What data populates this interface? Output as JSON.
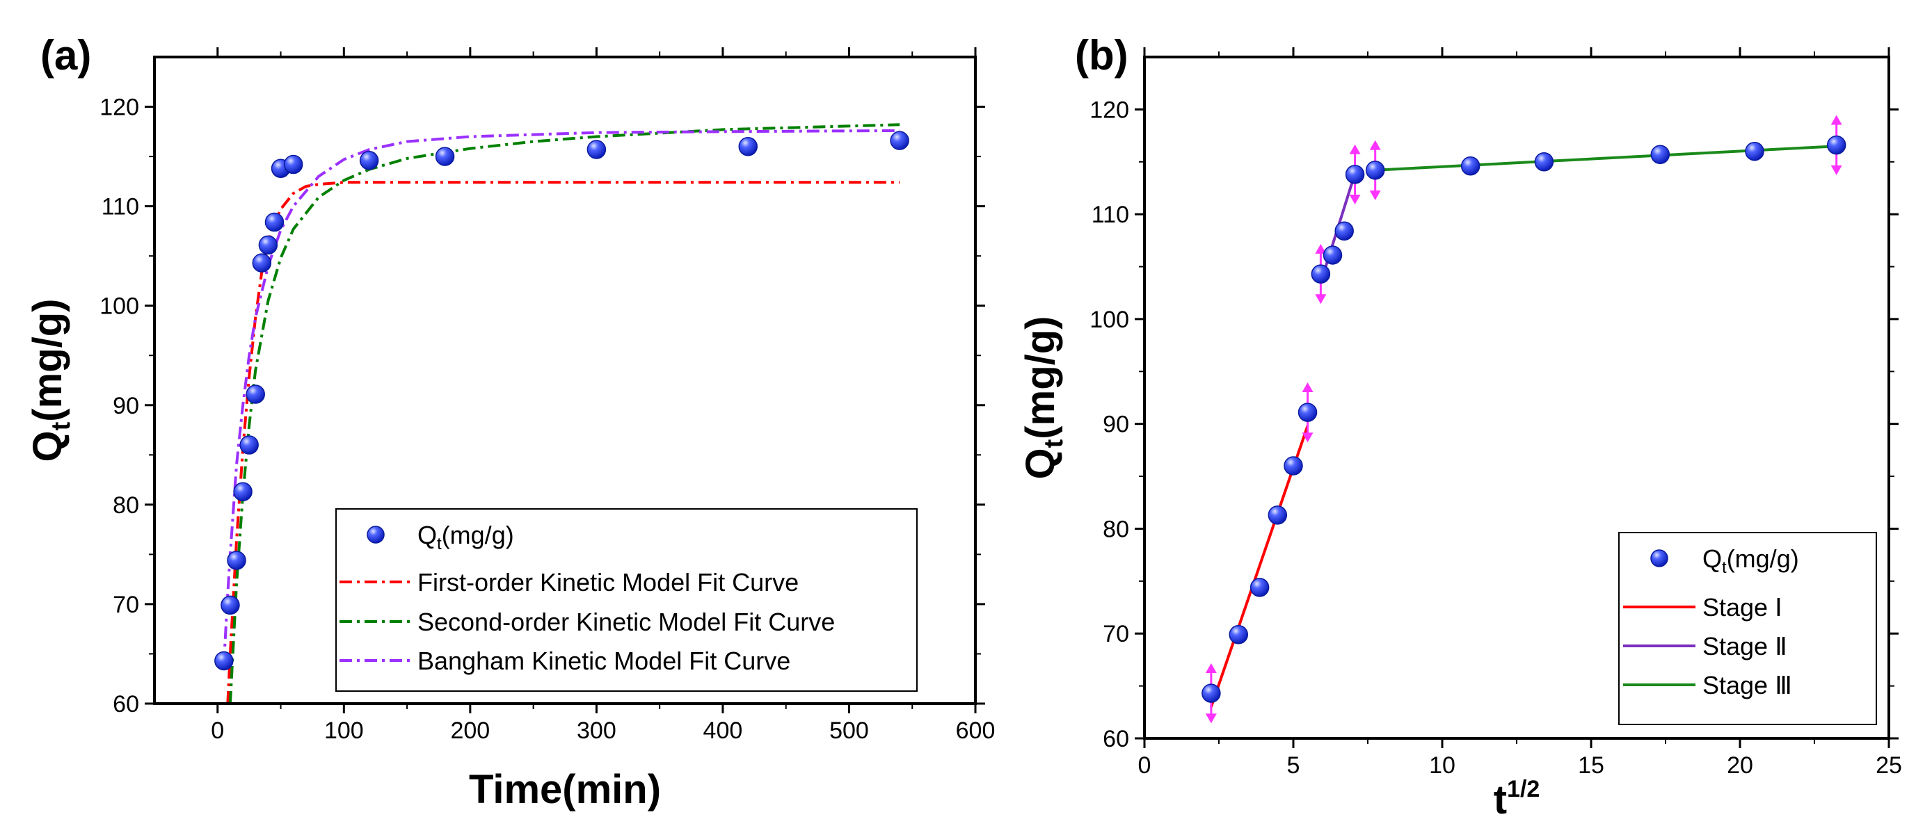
{
  "chart_data": [
    {
      "panel": "a",
      "panel_label": "(a)",
      "type": "scatter",
      "xlabel": "Time(min)",
      "ylabel_main": "Q",
      "ylabel_sub": "t",
      "ylabel_unit": "(mg/g)",
      "xlim": [
        -50,
        600
      ],
      "ylim": [
        60,
        125
      ],
      "xticks": [
        0,
        100,
        200,
        300,
        400,
        500,
        600
      ],
      "yticks": [
        60,
        70,
        80,
        90,
        100,
        110,
        120
      ],
      "points": [
        {
          "x": 5,
          "y": 64.3
        },
        {
          "x": 10,
          "y": 69.9
        },
        {
          "x": 15,
          "y": 74.4
        },
        {
          "x": 20,
          "y": 81.3
        },
        {
          "x": 25,
          "y": 86.0
        },
        {
          "x": 30,
          "y": 91.1
        },
        {
          "x": 35,
          "y": 104.3
        },
        {
          "x": 40,
          "y": 106.1
        },
        {
          "x": 45,
          "y": 108.4
        },
        {
          "x": 50,
          "y": 113.8
        },
        {
          "x": 60,
          "y": 114.2
        },
        {
          "x": 120,
          "y": 114.6
        },
        {
          "x": 180,
          "y": 115.0
        },
        {
          "x": 300,
          "y": 115.7
        },
        {
          "x": 420,
          "y": 116.0
        },
        {
          "x": 540,
          "y": 116.6
        }
      ],
      "series": [
        {
          "name": "First-order Kinetic Model Fit Curve",
          "color": "#ff0000",
          "x": [
            8,
            10,
            15,
            20,
            25,
            30,
            35,
            40,
            45,
            50,
            60,
            70,
            80,
            100,
            150,
            200,
            300,
            400,
            540
          ],
          "y": [
            60,
            65.0,
            76.4,
            85.6,
            92.9,
            98.8,
            103.4,
            106.3,
            108.3,
            109.7,
            111.3,
            112.0,
            112.2,
            112.4,
            112.4,
            112.4,
            112.4,
            112.4,
            112.4
          ]
        },
        {
          "name": "Second-order Kinetic Model Fit Curve",
          "color": "#008000",
          "x": [
            10,
            15,
            20,
            25,
            30,
            40,
            50,
            60,
            80,
            100,
            120,
            150,
            200,
            250,
            300,
            400,
            540
          ],
          "y": [
            60,
            72.0,
            81.0,
            88.0,
            93.5,
            100.5,
            104.8,
            107.7,
            110.9,
            112.6,
            113.7,
            114.8,
            115.8,
            116.5,
            117.0,
            117.7,
            118.2
          ]
        },
        {
          "name": "Bangham Kinetic Model Fit Curve",
          "color": "#9b30ff",
          "x": [
            5,
            8,
            10,
            15,
            20,
            25,
            30,
            40,
            50,
            60,
            80,
            100,
            120,
            150,
            200,
            300,
            400,
            540
          ],
          "y": [
            64.0,
            71.0,
            75.0,
            84.0,
            90.0,
            95.0,
            98.8,
            104.0,
            107.6,
            110.0,
            113.0,
            114.7,
            115.7,
            116.5,
            117.0,
            117.4,
            117.5,
            117.6
          ]
        }
      ],
      "legend": {
        "position": "bottom-right",
        "points_label_main": "Q",
        "points_label_sub": "t",
        "points_label_unit": "(mg/g)",
        "entries": [
          "First-order Kinetic Model Fit Curve",
          "Second-order Kinetic Model Fit Curve",
          "Bangham Kinetic Model Fit Curve"
        ]
      }
    },
    {
      "panel": "b",
      "panel_label": "(b)",
      "type": "scatter",
      "xlabel_main": "t",
      "xlabel_sup": "1/2",
      "ylabel_main": "Q",
      "ylabel_sub": "t",
      "ylabel_unit": "(mg/g)",
      "xlim": [
        0,
        25
      ],
      "ylim": [
        60,
        125
      ],
      "xticks": [
        0,
        5,
        10,
        15,
        20,
        25
      ],
      "yticks": [
        60,
        70,
        80,
        90,
        100,
        110,
        120
      ],
      "points": [
        {
          "x": 2.24,
          "y": 64.3
        },
        {
          "x": 3.16,
          "y": 69.9
        },
        {
          "x": 3.87,
          "y": 74.4
        },
        {
          "x": 4.47,
          "y": 81.3
        },
        {
          "x": 5.0,
          "y": 86.0
        },
        {
          "x": 5.48,
          "y": 91.1
        },
        {
          "x": 5.92,
          "y": 104.3
        },
        {
          "x": 6.32,
          "y": 106.1
        },
        {
          "x": 6.71,
          "y": 108.4
        },
        {
          "x": 7.07,
          "y": 113.8
        },
        {
          "x": 7.75,
          "y": 114.2
        },
        {
          "x": 10.95,
          "y": 114.6
        },
        {
          "x": 13.42,
          "y": 115.0
        },
        {
          "x": 17.32,
          "y": 115.7
        },
        {
          "x": 20.49,
          "y": 116.0
        },
        {
          "x": 23.24,
          "y": 116.6
        }
      ],
      "error_points": [
        0,
        5,
        6,
        9,
        10,
        15
      ],
      "error_amount": 2.2,
      "error_color": "#ff33ff",
      "series": [
        {
          "name": "Stage Ⅰ",
          "color": "#ff0000",
          "x": [
            2.24,
            5.48
          ],
          "y": [
            63.0,
            89.8
          ]
        },
        {
          "name": "Stage Ⅱ",
          "color": "#7b2fbe",
          "x": [
            5.92,
            7.07
          ],
          "y": [
            103.5,
            113.9
          ]
        },
        {
          "name": "Stage Ⅲ",
          "color": "#1a8a1a",
          "x": [
            7.75,
            23.24
          ],
          "y": [
            114.2,
            116.5
          ]
        }
      ],
      "legend": {
        "position": "bottom-right",
        "points_label_main": "Q",
        "points_label_sub": "t",
        "points_label_unit": "(mg/g)",
        "entries": [
          "Stage Ⅰ",
          "Stage Ⅱ",
          "Stage Ⅲ"
        ]
      }
    }
  ],
  "colors": {
    "marker_fill": "#1f35e6",
    "marker_highlight": "#cfd6ff",
    "marker_edge": "#0a1a9e"
  }
}
